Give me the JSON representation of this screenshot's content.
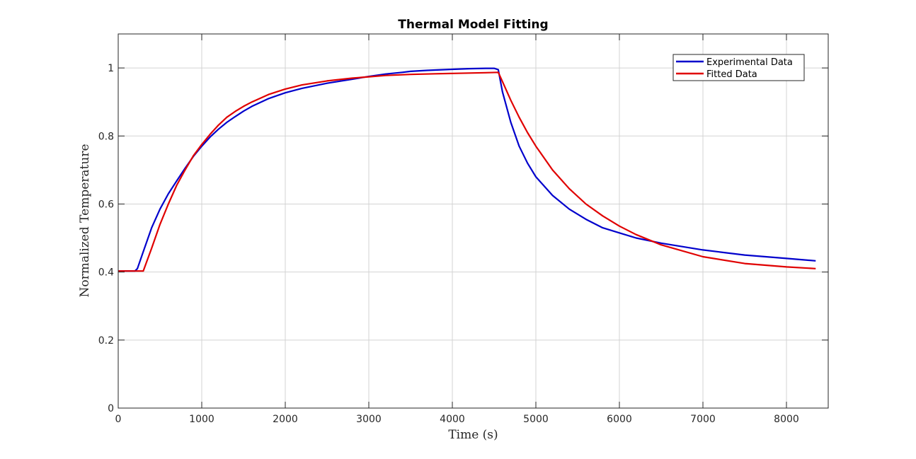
{
  "chart_data": {
    "type": "line",
    "title": "Thermal Model Fitting",
    "xlabel": "Time (s)",
    "ylabel": "Normalized Temperature",
    "xlim": [
      0,
      8500
    ],
    "ylim": [
      0,
      1.1
    ],
    "xticks": [
      0,
      1000,
      2000,
      3000,
      4000,
      5000,
      6000,
      7000,
      8000
    ],
    "yticks": [
      0,
      0.2,
      0.4,
      0.6,
      0.8,
      1
    ],
    "xtick_labels": [
      "0",
      "1000",
      "2000",
      "3000",
      "4000",
      "5000",
      "6000",
      "7000",
      "8000"
    ],
    "ytick_labels": [
      "0",
      "0.2",
      "0.4",
      "0.6",
      "0.8",
      "1"
    ],
    "grid": true,
    "legend_position": "top-right",
    "series": [
      {
        "name": "Experimental Data",
        "color": "#0000cc",
        "x": [
          0,
          100,
          200,
          230,
          300,
          400,
          500,
          600,
          700,
          800,
          900,
          1000,
          1100,
          1200,
          1300,
          1400,
          1500,
          1600,
          1800,
          2000,
          2200,
          2500,
          2800,
          3000,
          3200,
          3400,
          3500,
          3700,
          4000,
          4200,
          4400,
          4500,
          4550,
          4600,
          4700,
          4800,
          4900,
          5000,
          5200,
          5400,
          5600,
          5800,
          6000,
          6200,
          6500,
          7000,
          7500,
          8000,
          8350
        ],
        "y": [
          0.403,
          0.403,
          0.403,
          0.41,
          0.46,
          0.53,
          0.585,
          0.63,
          0.668,
          0.705,
          0.74,
          0.77,
          0.797,
          0.82,
          0.84,
          0.857,
          0.873,
          0.887,
          0.91,
          0.927,
          0.94,
          0.955,
          0.967,
          0.975,
          0.982,
          0.987,
          0.99,
          0.993,
          0.996,
          0.998,
          0.999,
          0.999,
          0.995,
          0.93,
          0.84,
          0.77,
          0.72,
          0.68,
          0.625,
          0.585,
          0.555,
          0.53,
          0.515,
          0.5,
          0.485,
          0.465,
          0.45,
          0.44,
          0.433
        ]
      },
      {
        "name": "Fitted Data",
        "color": "#e00000",
        "x": [
          0,
          100,
          200,
          300,
          400,
          500,
          600,
          700,
          800,
          900,
          1000,
          1100,
          1200,
          1300,
          1400,
          1500,
          1600,
          1800,
          2000,
          2200,
          2500,
          2800,
          3000,
          3200,
          3500,
          3800,
          4000,
          4200,
          4400,
          4550,
          4600,
          4700,
          4800,
          4900,
          5000,
          5200,
          5400,
          5600,
          5800,
          6000,
          6200,
          6500,
          7000,
          7500,
          8000,
          8350
        ],
        "y": [
          0.403,
          0.403,
          0.403,
          0.403,
          0.47,
          0.54,
          0.6,
          0.655,
          0.7,
          0.742,
          0.775,
          0.805,
          0.832,
          0.855,
          0.872,
          0.887,
          0.9,
          0.922,
          0.938,
          0.95,
          0.962,
          0.97,
          0.974,
          0.978,
          0.981,
          0.983,
          0.984,
          0.985,
          0.986,
          0.987,
          0.96,
          0.905,
          0.855,
          0.81,
          0.77,
          0.7,
          0.645,
          0.6,
          0.565,
          0.535,
          0.51,
          0.48,
          0.445,
          0.425,
          0.415,
          0.41
        ]
      }
    ]
  }
}
